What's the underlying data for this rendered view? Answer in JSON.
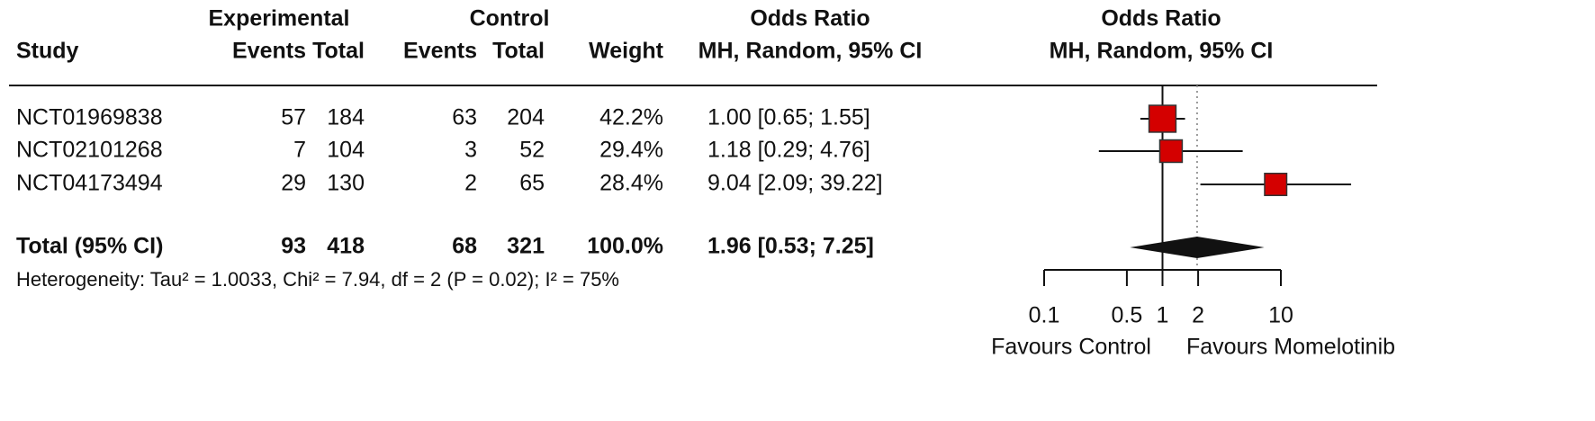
{
  "chart_data": {
    "type": "forest",
    "header": {
      "study": "Study",
      "experimental": "Experimental",
      "control": "Control",
      "events": "Events",
      "total": "Total",
      "weight": "Weight",
      "or_title": "Odds Ratio",
      "or_method": "MH, Random, 95% CI"
    },
    "plot_title": "Odds Ratio",
    "plot_subtitle": "MH, Random, 95% CI",
    "studies": [
      "NCT01969838",
      "NCT02101268",
      "NCT04173494"
    ],
    "exp_events": [
      57,
      7,
      29
    ],
    "exp_total": [
      184,
      104,
      130
    ],
    "ctrl_events": [
      63,
      3,
      2
    ],
    "ctrl_total": [
      204,
      52,
      65
    ],
    "weight": [
      42.2,
      29.4,
      28.4
    ],
    "weight_labels": [
      "42.2%",
      "29.4%",
      "28.4%"
    ],
    "or": [
      1.0,
      1.18,
      9.04
    ],
    "lower": [
      0.65,
      0.29,
      2.09
    ],
    "upper": [
      1.55,
      4.76,
      39.22
    ],
    "ci_labels": [
      "1.00 [0.65; 1.55]",
      "1.18 [0.29; 4.76]",
      "9.04 [2.09; 39.22]"
    ],
    "total": {
      "label": "Total (95% CI)",
      "exp_events": 93,
      "exp_total": 418,
      "ctrl_events": 68,
      "ctrl_total": 321,
      "weight": 100.0,
      "weight_label": "100.0%",
      "or": 1.96,
      "lower": 0.53,
      "upper": 7.25,
      "ci_label": "1.96 [0.53; 7.25]"
    },
    "heterogeneity": "Heterogeneity: Tau² = 1.0033, Chi² = 7.94, df = 2 (P = 0.02); I² = 75%",
    "log_scale": true,
    "xlim": [
      0.1,
      10
    ],
    "xticks": [
      0.1,
      0.5,
      1,
      2,
      10
    ],
    "xlabel_left": "Favours Control",
    "xlabel_right": "Favours Momelotinib",
    "box_color": "#d40000"
  }
}
